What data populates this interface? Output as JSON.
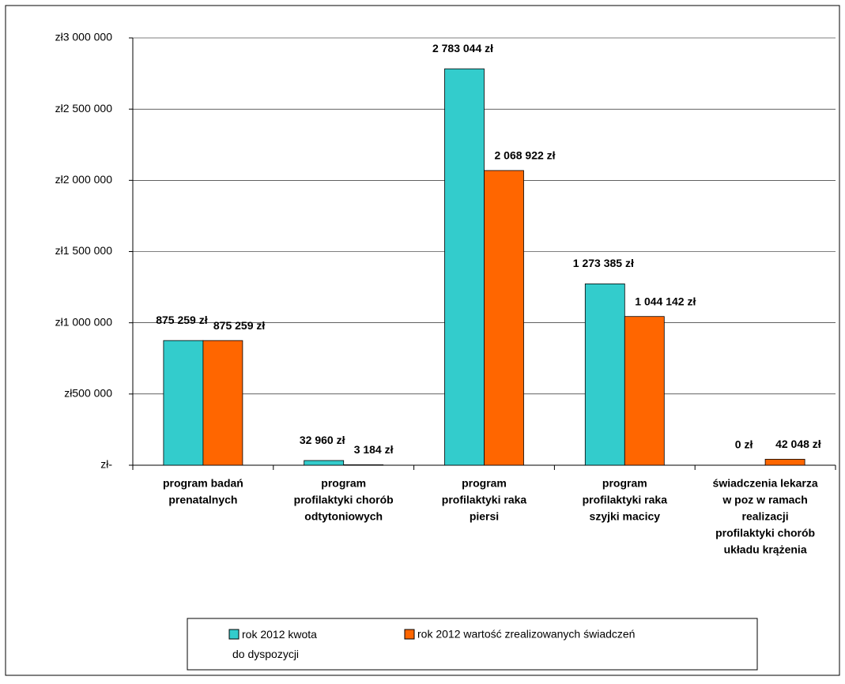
{
  "chart_data": {
    "type": "bar",
    "categories": [
      [
        "program badań",
        "prenatalnych"
      ],
      [
        "program",
        "profilaktyki chorób",
        "odtytoniowych"
      ],
      [
        "program",
        "profilaktyki raka",
        "piersi"
      ],
      [
        "program",
        "profilaktyki raka",
        "szyjki macicy"
      ],
      [
        "świadczenia lekarza",
        "w poz w ramach",
        "realizacji",
        "profilaktyki  chorób",
        "układu krążenia"
      ]
    ],
    "series": [
      {
        "name": "rok 2012 kwota do dyspozycji",
        "color": "#33cccc",
        "values": [
          875259,
          32960,
          2783044,
          1273385,
          0
        ],
        "value_labels": [
          "875 259 zł",
          "32 960 zł",
          "2 783 044 zł",
          "1 273 385 zł",
          "0 zł"
        ]
      },
      {
        "name": "rok 2012 wartość zrealizowanych świadczeń",
        "color": "#ff6600",
        "values": [
          875259,
          3184,
          2068922,
          1044142,
          42048
        ],
        "value_labels": [
          "875 259 zł",
          "3 184 zł",
          "2 068 922 zł",
          "1 044 142 zł",
          "42 048 zł"
        ]
      }
    ],
    "ylim": [
      0,
      3000000
    ],
    "yticks": [
      {
        "value": 0,
        "label": "zł-"
      },
      {
        "value": 500000,
        "label": "zł500 000"
      },
      {
        "value": 1000000,
        "label": "zł1 000 000"
      },
      {
        "value": 1500000,
        "label": "zł1 500 000"
      },
      {
        "value": 2000000,
        "label": "zł2 000 000"
      },
      {
        "value": 2500000,
        "label": "zł2 500 000"
      },
      {
        "value": 3000000,
        "label": "zł3 000 000"
      }
    ],
    "grid": true
  }
}
